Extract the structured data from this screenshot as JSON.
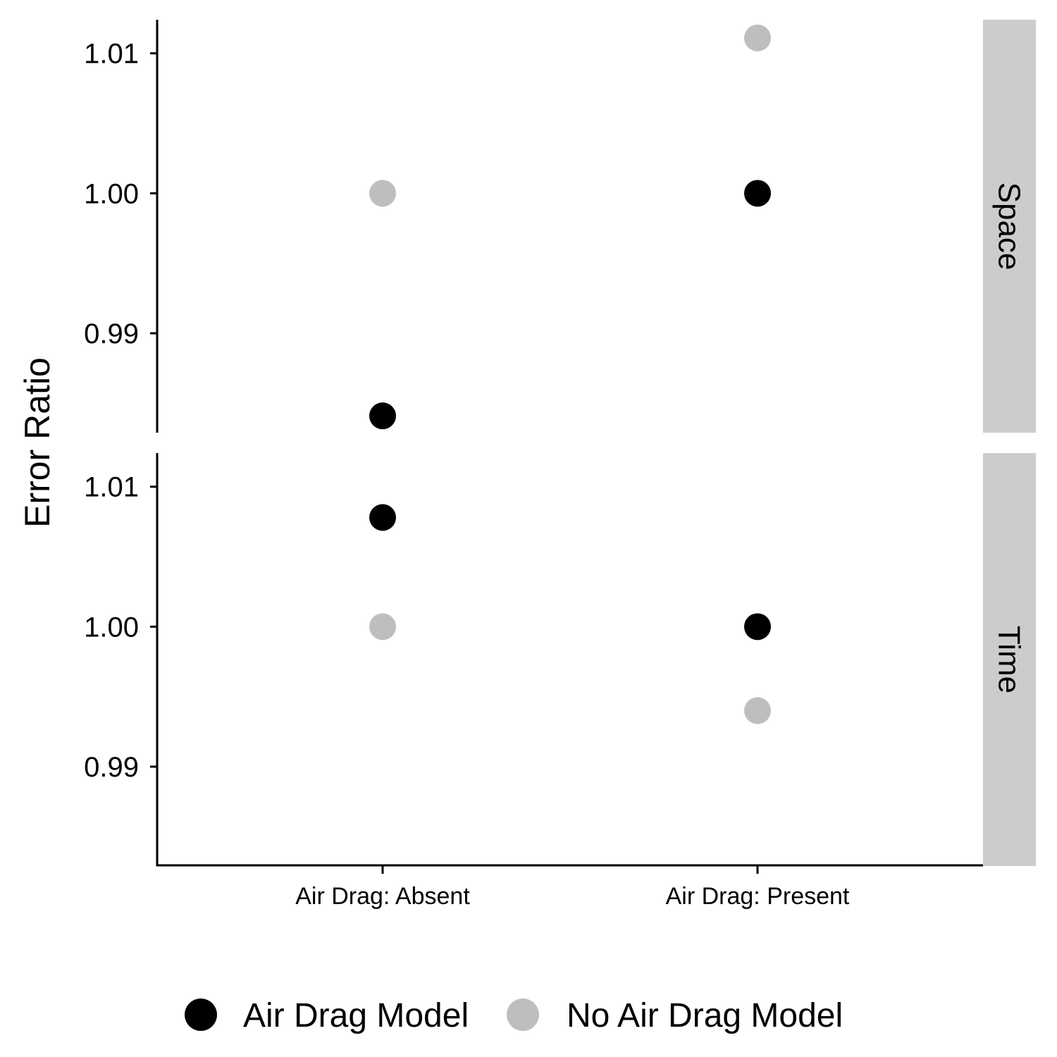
{
  "chart_data": {
    "type": "scatter",
    "ylabel": "Error Ratio",
    "xlabel": "",
    "categories": [
      "Air Drag: Absent",
      "Air Drag: Present"
    ],
    "panels": [
      {
        "label": "Space",
        "y_ticks": [
          "0.99",
          "1.00",
          "1.01"
        ],
        "ylim": [
          0.9829,
          1.0124
        ],
        "series": [
          {
            "name": "Air Drag Model",
            "values": [
              0.9841,
              1.0
            ]
          },
          {
            "name": "No Air Drag Model",
            "values": [
              1.0,
              1.0111
            ]
          }
        ]
      },
      {
        "label": "Time",
        "y_ticks": [
          "0.99",
          "1.00",
          "1.01"
        ],
        "ylim": [
          0.9829,
          1.0124
        ],
        "series": [
          {
            "name": "Air Drag Model",
            "values": [
              1.0078,
              1.0
            ]
          },
          {
            "name": "No Air Drag Model",
            "values": [
              1.0,
              0.994
            ]
          }
        ]
      }
    ],
    "legend": {
      "position": "bottom",
      "entries": [
        "Air Drag Model",
        "No Air Drag Model"
      ]
    },
    "colors": {
      "Air Drag Model": "#000000",
      "No Air Drag Model": "#bebebe",
      "strip_background": "#cccccc",
      "axis_line": "#000000"
    },
    "grid": false
  }
}
